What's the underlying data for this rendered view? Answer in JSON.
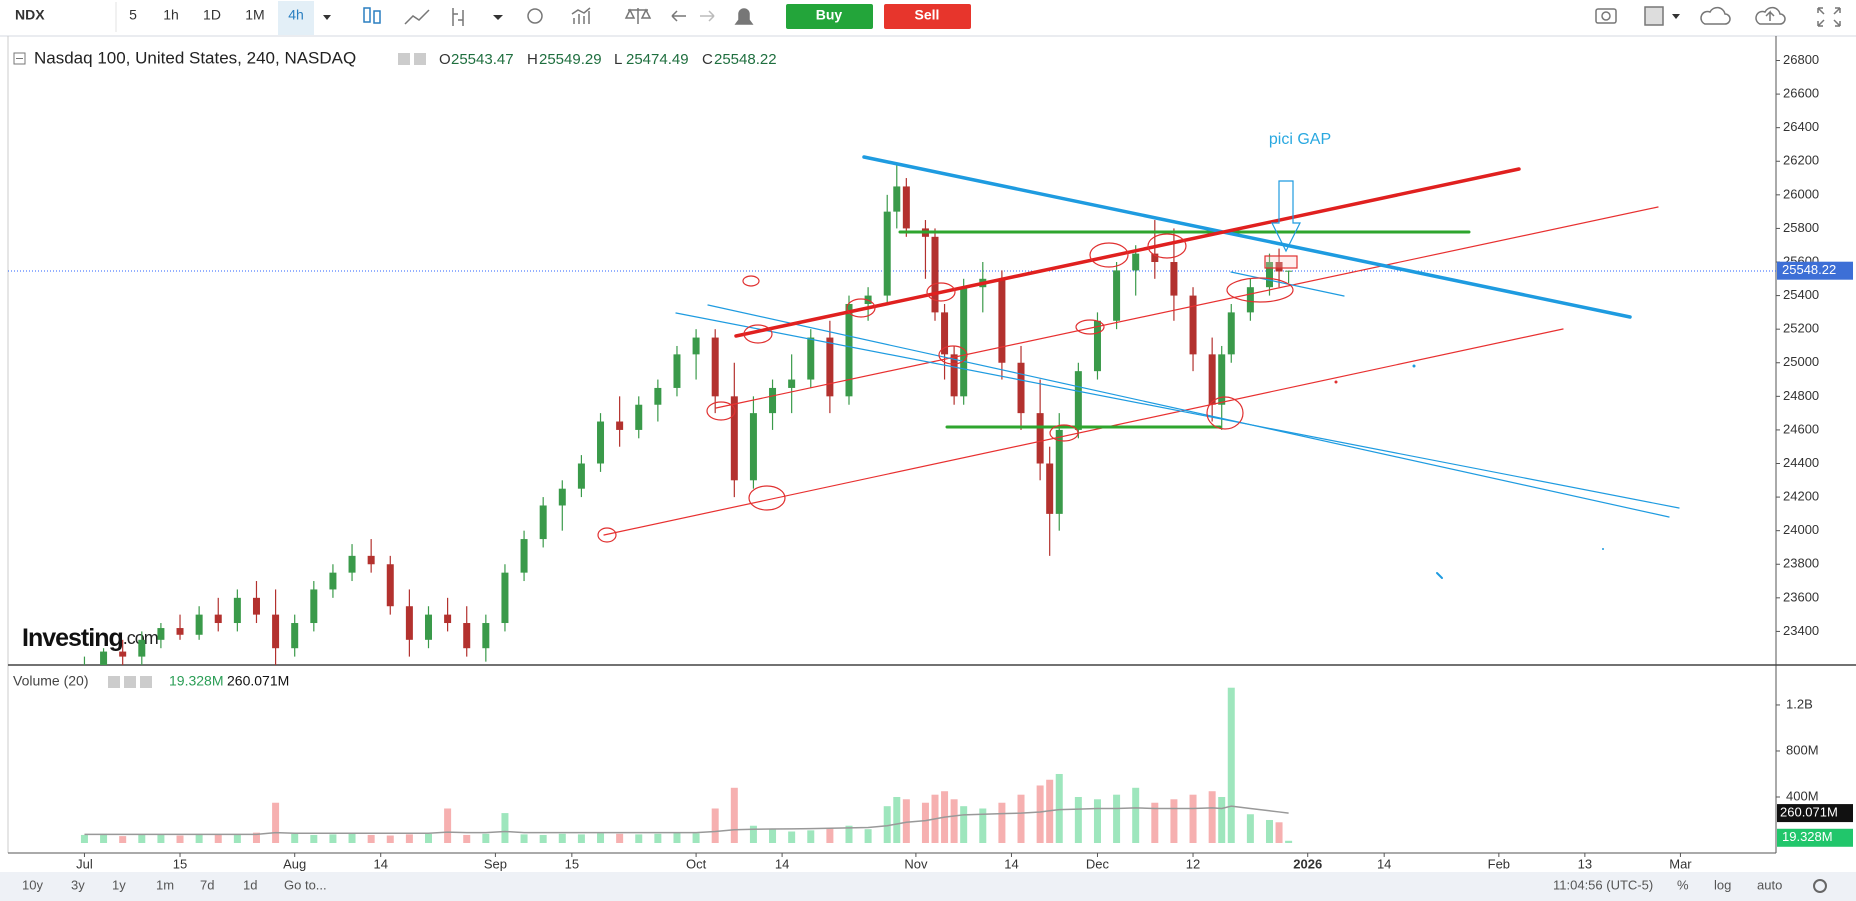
{
  "toolbar": {
    "symbol": "NDX",
    "intervals": [
      "5",
      "1h",
      "1D",
      "1M",
      "4h"
    ],
    "buy": "Buy",
    "sell": "Sell"
  },
  "bottom_bar": {
    "ranges": [
      "10y",
      "3y",
      "1y",
      "1m",
      "7d",
      "1d"
    ],
    "goto": "Go to...",
    "clock": "11:04:56 (UTC-5)",
    "options": [
      "%",
      "log",
      "auto"
    ]
  },
  "watermark": {
    "name": "Investing",
    "suffix": ".com"
  },
  "annotations": [
    {
      "text": "pici GAP"
    }
  ],
  "chart_data": {
    "type": "candlestick",
    "title": "Nasdaq 100, United States, 240, NASDAQ",
    "ohlc_labels": [
      "O",
      "H",
      "L",
      "C"
    ],
    "up_color": "#3a9a4a",
    "down_color": "#b3312e",
    "price_tag_color": "#3d6fd6",
    "x": [
      0,
      2,
      4,
      6,
      8,
      10,
      12,
      14,
      16,
      18,
      20,
      22,
      24,
      26,
      28,
      30,
      32,
      34,
      36,
      38,
      40,
      42,
      44,
      46,
      48,
      50,
      52,
      54,
      56,
      58,
      60,
      62,
      64,
      66,
      68,
      70,
      72,
      74,
      76,
      78,
      80,
      82,
      84,
      85,
      86,
      88,
      89,
      90,
      91,
      92,
      94,
      96,
      98,
      100,
      101,
      102,
      104,
      106,
      108,
      110,
      112,
      114,
      116,
      118,
      119,
      120,
      122,
      124,
      125,
      126
    ],
    "open": [
      23100,
      23200,
      23280,
      23250,
      23350,
      23420,
      23380,
      23500,
      23450,
      23600,
      23500,
      23300,
      23450,
      23650,
      23750,
      23850,
      23800,
      23550,
      23350,
      23500,
      23450,
      23300,
      23450,
      23750,
      23950,
      24150,
      24250,
      24400,
      24650,
      24600,
      24750,
      24850,
      25050,
      25150,
      24800,
      24300,
      24700,
      24850,
      24900,
      25150,
      24800,
      25350,
      25400,
      25900,
      26050,
      25800,
      25750,
      25300,
      25050,
      24800,
      25450,
      25500,
      25000,
      24700,
      24400,
      24100,
      24600,
      24950,
      25250,
      25550,
      25650,
      25600,
      25400,
      25050,
      24750,
      25050,
      25300,
      25450,
      25600,
      25543.47
    ],
    "high": [
      23250,
      23300,
      23350,
      23400,
      23450,
      23500,
      23550,
      23600,
      23650,
      23700,
      23650,
      23500,
      23700,
      23800,
      23920,
      23950,
      23850,
      23650,
      23550,
      23600,
      23550,
      23500,
      23800,
      24000,
      24200,
      24300,
      24450,
      24700,
      24800,
      24800,
      24900,
      25100,
      25200,
      25200,
      25000,
      24800,
      24900,
      25050,
      25200,
      25250,
      25400,
      25450,
      26000,
      26180,
      26100,
      25850,
      25800,
      25350,
      25100,
      25500,
      25600,
      25550,
      25100,
      24900,
      24500,
      24700,
      25000,
      25300,
      25600,
      25700,
      25850,
      25800,
      25450,
      25150,
      25100,
      25350,
      25500,
      25650,
      25680,
      25549.29
    ],
    "low": [
      23050,
      23150,
      23200,
      23200,
      23300,
      23350,
      23350,
      23400,
      23400,
      23450,
      23200,
      23250,
      23400,
      23600,
      23700,
      23750,
      23500,
      23250,
      23300,
      23400,
      23250,
      23220,
      23400,
      23700,
      23900,
      24000,
      24200,
      24350,
      24500,
      24550,
      24650,
      24800,
      24900,
      24700,
      24200,
      24250,
      24600,
      24700,
      24850,
      24700,
      24750,
      25250,
      25350,
      25800,
      25750,
      25500,
      25250,
      24900,
      24750,
      24750,
      25300,
      24900,
      24600,
      24300,
      23850,
      24000,
      24550,
      24900,
      25200,
      25400,
      25500,
      25250,
      24950,
      24650,
      24600,
      25000,
      25250,
      25400,
      25450,
      25474.49
    ],
    "close": [
      23200,
      23280,
      23250,
      23350,
      23420,
      23380,
      23500,
      23450,
      23600,
      23500,
      23300,
      23450,
      23650,
      23750,
      23850,
      23800,
      23550,
      23350,
      23500,
      23450,
      23300,
      23450,
      23750,
      23950,
      24150,
      24250,
      24400,
      24650,
      24600,
      24750,
      24850,
      25050,
      25150,
      24800,
      24300,
      24700,
      24850,
      24900,
      25150,
      24800,
      25350,
      25400,
      25900,
      26050,
      25800,
      25750,
      25300,
      25050,
      24800,
      25450,
      25500,
      25000,
      24700,
      24400,
      24100,
      24600,
      24950,
      25250,
      25550,
      25650,
      25600,
      25400,
      25050,
      24750,
      25050,
      25300,
      25450,
      25600,
      25543.47,
      25548.22
    ],
    "xlim": [
      -8,
      177
    ],
    "xticks": [
      {
        "value": 0,
        "label": "Jul"
      },
      {
        "value": 10,
        "label": "15"
      },
      {
        "value": 22,
        "label": "Aug"
      },
      {
        "value": 31,
        "label": "14"
      },
      {
        "value": 43,
        "label": "Sep"
      },
      {
        "value": 51,
        "label": "15"
      },
      {
        "value": 64,
        "label": "Oct"
      },
      {
        "value": 73,
        "label": "14"
      },
      {
        "value": 87,
        "label": "Nov"
      },
      {
        "value": 97,
        "label": "14"
      },
      {
        "value": 106,
        "label": "Dec"
      },
      {
        "value": 116,
        "label": "12"
      },
      {
        "value": 128,
        "label": "2026"
      },
      {
        "value": 136,
        "label": "14"
      },
      {
        "value": 148,
        "label": "Feb"
      },
      {
        "value": 157,
        "label": "13"
      },
      {
        "value": 167,
        "label": "Mar"
      }
    ],
    "ylim": [
      23200,
      26940
    ],
    "yticks": [
      23400,
      23600,
      23800,
      24000,
      24200,
      24400,
      24600,
      24800,
      25000,
      25200,
      25400,
      25600,
      25800,
      26000,
      26200,
      26400,
      26600,
      26800
    ],
    "volume": {
      "title": "Volume (20)",
      "up_color": "#9ee6bd",
      "down_color": "#f6b0b0",
      "ma_color": "#999999",
      "values": [
        70,
        80,
        60,
        75,
        70,
        65,
        80,
        70,
        75,
        90,
        350,
        80,
        70,
        75,
        80,
        70,
        65,
        75,
        80,
        300,
        70,
        80,
        260,
        75,
        70,
        80,
        75,
        85,
        80,
        75,
        80,
        90,
        85,
        300,
        480,
        150,
        120,
        100,
        110,
        130,
        150,
        120,
        320,
        400,
        380,
        350,
        420,
        450,
        380,
        320,
        300,
        350,
        420,
        500,
        550,
        600,
        400,
        380,
        420,
        480,
        350,
        380,
        420,
        450,
        400,
        1350,
        250,
        200,
        180,
        19.328
      ],
      "ma": [
        75,
        75,
        75,
        75,
        75,
        75,
        75,
        75,
        75,
        75,
        90,
        85,
        85,
        85,
        85,
        85,
        85,
        85,
        85,
        95,
        90,
        90,
        100,
        90,
        90,
        90,
        90,
        90,
        90,
        90,
        90,
        90,
        90,
        100,
        115,
        120,
        122,
        123,
        125,
        128,
        132,
        135,
        150,
        165,
        180,
        195,
        210,
        225,
        235,
        245,
        250,
        255,
        260,
        270,
        280,
        290,
        295,
        300,
        300,
        305,
        300,
        300,
        300,
        305,
        300,
        320,
        300,
        280,
        270,
        260.071
      ],
      "last_label": "19.328M",
      "ma_last_label": "260.071M",
      "ylim": [
        0,
        1530
      ],
      "yticks": [
        {
          "value": 400,
          "label": "400M"
        },
        {
          "value": 800,
          "label": "800M"
        },
        {
          "value": 1200,
          "label": "1.2B"
        }
      ]
    }
  }
}
